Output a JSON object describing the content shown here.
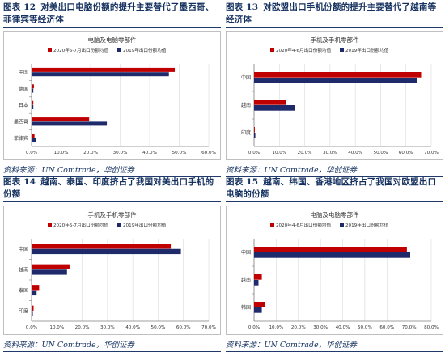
{
  "colors": {
    "red": "#c00000",
    "navy": "#1f2a6b",
    "grid": "#d9d9d9",
    "axis": "#7f7f7f"
  },
  "panels": [
    {
      "label": "图表 12",
      "title": "对美出口电脑份额的提升主要替代了墨西哥、菲律宾等经济体",
      "source": "资料来源：UN Comtrade，华创证券"
    },
    {
      "label": "图表 13",
      "title": "对欧盟出口手机份额的提升主要替代了越南等经济体",
      "source": "资料来源：UN Comtrade，华创证券"
    },
    {
      "label": "图表 14",
      "title": "越南、泰国、印度挤占了我国对美出口手机的份额",
      "source": "资料来源：UN Comtrade，华创证券"
    },
    {
      "label": "图表 15",
      "title": "越南、纬国、香港地区挤占了我国对欧盟出口电脑的份额",
      "source": "资料来源：UN Comtrade，华创证券"
    }
  ],
  "chart_data": [
    {
      "type": "bar",
      "orientation": "horizontal",
      "title": "电脑及电脑零部件",
      "categories": [
        "中国",
        "德国",
        "日本",
        "墨西哥",
        "菲律宾"
      ],
      "series": [
        {
          "name": "2020年5-7月出口份额均值",
          "values": [
            48.5,
            0.8,
            0.6,
            19.5,
            1.0
          ]
        },
        {
          "name": "2019年出口份额均值",
          "values": [
            46.5,
            0.6,
            0.6,
            25.5,
            1.5
          ]
        }
      ],
      "xlim": [
        0,
        60
      ],
      "xticks": [
        "0.0%",
        "10.0%",
        "20.0%",
        "30.0%",
        "40.0%",
        "50.0%",
        "60.0%"
      ],
      "legend": "top",
      "grid": true
    },
    {
      "type": "bar",
      "orientation": "horizontal",
      "title": "手机及手机零部件",
      "categories": [
        "中国",
        "越南",
        "印度"
      ],
      "series": [
        {
          "name": "2020年4-6月出口份额均值",
          "values": [
            66.0,
            12.5,
            0.3
          ]
        },
        {
          "name": "2019年出口份额均值",
          "values": [
            64.5,
            16.0,
            0.5
          ]
        }
      ],
      "xlim": [
        0,
        70
      ],
      "xticks": [
        "0.0%",
        "10.0%",
        "20.0%",
        "30.0%",
        "40.0%",
        "50.0%",
        "60.0%",
        "70.0%"
      ],
      "legend": "top",
      "grid": true
    },
    {
      "type": "bar",
      "orientation": "horizontal",
      "title": "手机及手机零部件",
      "categories": [
        "中国",
        "越南",
        "泰国",
        "印度"
      ],
      "series": [
        {
          "name": "2020年5-7月出口份额均值",
          "values": [
            55.0,
            15.0,
            3.0,
            0.8
          ]
        },
        {
          "name": "2019年出口份额均值",
          "values": [
            59.0,
            14.0,
            2.0,
            0.5
          ]
        }
      ],
      "xlim": [
        0,
        70
      ],
      "xticks": [
        "0.0%",
        "10.0%",
        "20.0%",
        "30.0%",
        "40.0%",
        "50.0%",
        "60.0%",
        "70.0%"
      ],
      "legend": "top",
      "grid": true
    },
    {
      "type": "bar",
      "orientation": "horizontal",
      "title": "电脑及电脑零部件",
      "categories": [
        "中国",
        "越南",
        "韩国"
      ],
      "series": [
        {
          "name": "2020年4-6月出口份额均值",
          "values": [
            69.0,
            3.5,
            5.0
          ]
        },
        {
          "name": "2019年出口份额均值",
          "values": [
            70.5,
            2.0,
            3.5
          ]
        }
      ],
      "xlim": [
        0,
        80
      ],
      "xticks": [
        "0.0%",
        "10.0%",
        "20.0%",
        "30.0%",
        "40.0%",
        "50.0%",
        "60.0%",
        "70.0%",
        "80.0%"
      ],
      "legend": "top",
      "grid": true
    }
  ]
}
